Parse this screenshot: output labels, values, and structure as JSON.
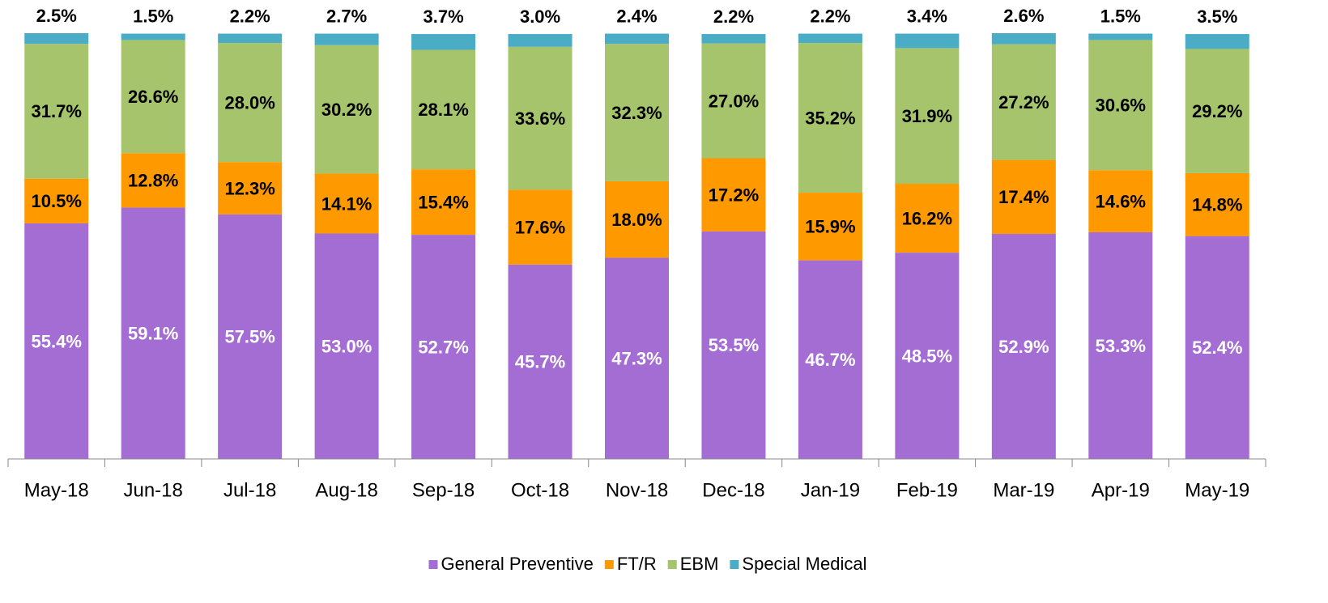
{
  "chart_data": {
    "type": "stacked_bar",
    "categories": [
      "May-18",
      "Jun-18",
      "Jul-18",
      "Aug-18",
      "Sep-18",
      "Oct-18",
      "Nov-18",
      "Dec-18",
      "Jan-19",
      "Feb-19",
      "Mar-19",
      "Apr-19",
      "May-19"
    ],
    "series": [
      {
        "name": "General Preventive",
        "color": "#a36dd4",
        "label_color": "#ffffff",
        "values": [
          55.4,
          59.1,
          57.5,
          53.0,
          52.7,
          45.7,
          47.3,
          53.5,
          46.7,
          48.5,
          52.9,
          53.3,
          52.4
        ],
        "value_labels": [
          "55.4%",
          "59.1%",
          "57.5%",
          "53.0%",
          "52.7%",
          "45.7%",
          "47.3%",
          "53.5%",
          "46.7%",
          "48.5%",
          "52.9%",
          "53.3%",
          "52.4%"
        ]
      },
      {
        "name": "FT/R",
        "color": "#ff9900",
        "label_color": "#000000",
        "values": [
          10.5,
          12.8,
          12.3,
          14.1,
          15.4,
          17.6,
          18.0,
          17.2,
          15.9,
          16.2,
          17.4,
          14.6,
          14.8
        ],
        "value_labels": [
          "10.5%",
          "12.8%",
          "12.3%",
          "14.1%",
          "15.4%",
          "17.6%",
          "18.0%",
          "17.2%",
          "15.9%",
          "16.2%",
          "17.4%",
          "14.6%",
          "14.8%"
        ]
      },
      {
        "name": "EBM",
        "color": "#a5c46b",
        "label_color": "#000000",
        "values": [
          31.7,
          26.6,
          28.0,
          30.2,
          28.1,
          33.6,
          32.3,
          27.0,
          35.2,
          31.9,
          27.2,
          30.6,
          29.2
        ],
        "value_labels": [
          "31.7%",
          "26.6%",
          "28.0%",
          "30.2%",
          "28.1%",
          "33.6%",
          "32.3%",
          "27.0%",
          "35.2%",
          "31.9%",
          "27.2%",
          "30.6%",
          "29.2%"
        ]
      },
      {
        "name": "Special Medical",
        "color": "#4bacc6",
        "label_color": "#000000",
        "values": [
          2.5,
          1.5,
          2.2,
          2.7,
          3.7,
          3.0,
          2.4,
          2.2,
          2.2,
          3.4,
          2.6,
          1.5,
          3.5
        ],
        "value_labels": [
          "2.5%",
          "1.5%",
          "2.2%",
          "2.7%",
          "3.7%",
          "3.0%",
          "2.4%",
          "2.2%",
          "2.2%",
          "3.4%",
          "2.6%",
          "1.5%",
          "3.5%"
        ]
      }
    ],
    "legend": "bottom"
  }
}
